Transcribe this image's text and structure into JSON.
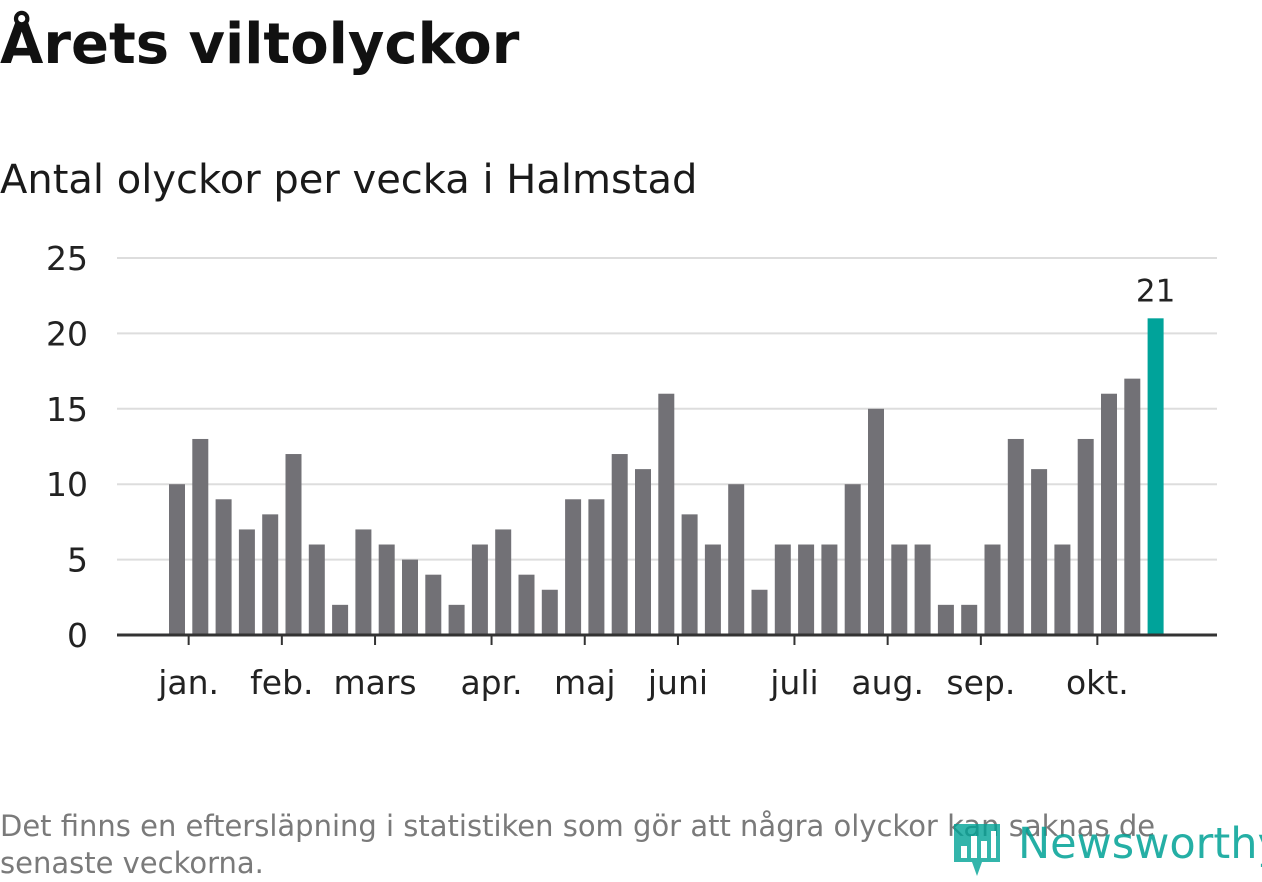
{
  "title": "Årets viltolyckor",
  "subtitle": "Antal olyckor per vecka i Halmstad",
  "footnote": "Det finns en eftersläpning i statistiken som gör att några olyckor kan saknas de senaste veckorna.",
  "brand": {
    "name": "Newsworthy",
    "icon": "bar-chart-logo-icon",
    "color": "#00a296"
  },
  "colors": {
    "bar": "#727176",
    "highlight": "#00a39a",
    "grid": "#dddddd",
    "axis": "#333333",
    "text": "#222222"
  },
  "chart_data": {
    "type": "bar",
    "title": "Antal olyckor per vecka i Halmstad",
    "xlabel": "",
    "ylabel": "",
    "ylim": [
      0,
      25
    ],
    "yticks": [
      0,
      5,
      10,
      15,
      20,
      25
    ],
    "grid": true,
    "weeks": [
      1,
      2,
      3,
      4,
      5,
      6,
      7,
      8,
      9,
      10,
      11,
      12,
      13,
      14,
      15,
      16,
      17,
      18,
      19,
      20,
      21,
      22,
      23,
      24,
      25,
      26,
      27,
      28,
      29,
      30,
      31,
      32,
      33,
      34,
      35,
      36,
      37,
      38,
      39,
      40,
      41,
      42,
      43
    ],
    "values": [
      10,
      13,
      9,
      7,
      8,
      12,
      6,
      2,
      7,
      6,
      5,
      4,
      2,
      6,
      7,
      4,
      3,
      9,
      9,
      12,
      11,
      16,
      8,
      6,
      10,
      3,
      6,
      6,
      6,
      10,
      15,
      6,
      6,
      2,
      2,
      6,
      13,
      11,
      6,
      13,
      16,
      17,
      21
    ],
    "highlight_index": 42,
    "highlight_label": "21",
    "month_ticks": [
      {
        "label": "jan.",
        "week": 1.5
      },
      {
        "label": "feb.",
        "week": 5.5
      },
      {
        "label": "mars",
        "week": 9.5
      },
      {
        "label": "apr.",
        "week": 14.5
      },
      {
        "label": "maj",
        "week": 18.5
      },
      {
        "label": "juni",
        "week": 22.5
      },
      {
        "label": "juli",
        "week": 27.5
      },
      {
        "label": "aug.",
        "week": 31.5
      },
      {
        "label": "sep.",
        "week": 35.5
      },
      {
        "label": "okt.",
        "week": 40.5
      }
    ]
  }
}
